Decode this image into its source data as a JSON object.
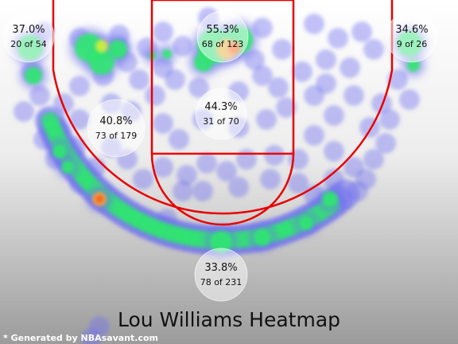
{
  "chart_data": {
    "type": "heatmap",
    "title": "Lou Williams Heatmap",
    "footer": "* Generated by NBAsavant.com",
    "zones": [
      {
        "id": "left-corner",
        "pct": "37.0%",
        "made": 20,
        "att": 54,
        "count": "20 of 54"
      },
      {
        "id": "paint",
        "pct": "55.3%",
        "made": 68,
        "att": 123,
        "count": "68 of 123"
      },
      {
        "id": "right-corner",
        "pct": "34.6%",
        "made": 9,
        "att": 26,
        "count": "9 of 26"
      },
      {
        "id": "left-mid",
        "pct": "40.8%",
        "made": 73,
        "att": 179,
        "count": "73 of 179"
      },
      {
        "id": "mid-center",
        "pct": "44.3%",
        "made": 31,
        "att": 70,
        "count": "31 of 70"
      },
      {
        "id": "three-arc",
        "pct": "33.8%",
        "made": 78,
        "att": 231,
        "count": "78 of 231"
      }
    ],
    "colors": {
      "court_lines": "#e80000",
      "background_top": "#ffffff",
      "background_bottom": "#9b9b9b",
      "heat_low": "#6f6ff0",
      "heat_mid": "#2ee86e",
      "heat_high": "#ff5a1a"
    }
  }
}
